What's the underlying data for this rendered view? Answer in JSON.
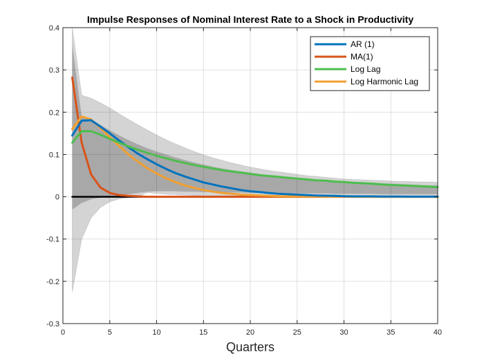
{
  "chart_data": {
    "type": "line",
    "title": "Impulse Responses of Nominal Interest Rate to a Shock in Productivity",
    "xlabel": "Quarters",
    "ylabel": "",
    "xlim": [
      0,
      40
    ],
    "ylim": [
      -0.3,
      0.4
    ],
    "xticks": [
      0,
      5,
      10,
      15,
      20,
      25,
      30,
      35,
      40
    ],
    "yticks": [
      -0.3,
      -0.2,
      -0.1,
      0,
      0.1,
      0.2,
      0.3,
      0.4
    ],
    "xtick_labels": [
      "0",
      "5",
      "10",
      "15",
      "20",
      "25",
      "30",
      "35",
      "40"
    ],
    "ytick_labels": [
      "-0.3",
      "-0.2",
      "-0.1",
      "0",
      "0.1",
      "0.2",
      "0.3",
      "0.4"
    ],
    "grid": true,
    "legend_position": "top-right",
    "x": [
      1,
      2,
      3,
      4,
      5,
      6,
      7,
      8,
      9,
      10,
      11,
      12,
      13,
      14,
      15,
      16,
      17,
      18,
      19,
      20,
      21,
      22,
      23,
      24,
      25,
      26,
      27,
      28,
      29,
      30,
      31,
      32,
      33,
      34,
      35,
      36,
      37,
      38,
      39,
      40
    ],
    "series": [
      {
        "name": "AR (1)",
        "color": "#0072BD",
        "values": [
          0.145,
          0.18,
          0.181,
          0.166,
          0.15,
          0.133,
          0.117,
          0.102,
          0.089,
          0.077,
          0.066,
          0.056,
          0.048,
          0.041,
          0.034,
          0.029,
          0.024,
          0.02,
          0.016,
          0.013,
          0.011,
          0.009,
          0.007,
          0.006,
          0.005,
          0.004,
          0.003,
          0.0025,
          0.002,
          0.0015,
          0.001,
          0.001,
          0.001,
          0.0005,
          0.0005,
          0.0005,
          0.0003,
          0.0003,
          0.0002,
          0.0002
        ]
      },
      {
        "name": "MA(1)",
        "color": "#D95319",
        "values": [
          0.282,
          0.128,
          0.053,
          0.022,
          0.009,
          0.004,
          0.002,
          0.001,
          0,
          0,
          0,
          0,
          0,
          0,
          0,
          0,
          0,
          0,
          0,
          0,
          0,
          0,
          0,
          0,
          0,
          0,
          0,
          0,
          0,
          0,
          0,
          0,
          0,
          0,
          0,
          0,
          0,
          0,
          0,
          0
        ]
      },
      {
        "name": "Log Lag",
        "color": "#4DBD4D",
        "values": [
          0.128,
          0.155,
          0.155,
          0.147,
          0.137,
          0.128,
          0.119,
          0.111,
          0.104,
          0.097,
          0.091,
          0.085,
          0.08,
          0.075,
          0.071,
          0.067,
          0.063,
          0.06,
          0.057,
          0.054,
          0.051,
          0.049,
          0.047,
          0.045,
          0.043,
          0.041,
          0.039,
          0.038,
          0.036,
          0.035,
          0.033,
          0.032,
          0.031,
          0.029,
          0.028,
          0.027,
          0.026,
          0.025,
          0.024,
          0.023
        ]
      },
      {
        "name": "Log Harmonic Lag",
        "color": "#F0A030",
        "values": [
          0.16,
          0.19,
          0.183,
          0.163,
          0.141,
          0.12,
          0.1,
          0.083,
          0.068,
          0.055,
          0.044,
          0.035,
          0.027,
          0.021,
          0.016,
          0.012,
          0.009,
          0.007,
          0.005,
          0.004,
          0.003,
          0.002,
          0.0015,
          0.001,
          0.001,
          0.0005,
          0.0005,
          0.0003,
          0.0002,
          0.0002,
          0.0001,
          0.0001,
          0,
          0,
          0,
          0,
          0,
          0,
          0,
          0
        ]
      },
      {
        "name": "",
        "color": "#000000",
        "values": [
          0,
          0,
          0,
          0,
          0,
          0,
          0,
          0,
          0,
          0,
          0,
          0,
          0,
          0,
          0,
          0,
          0,
          0,
          0,
          0,
          0,
          0,
          0,
          0,
          0,
          0,
          0,
          0,
          0,
          0,
          0,
          0,
          0,
          0,
          0,
          0,
          0,
          0,
          0,
          0
        ]
      }
    ],
    "bands": [
      {
        "color": "#d4d4d4",
        "lower": [
          -0.225,
          -0.1,
          -0.05,
          -0.025,
          -0.012,
          -0.005,
          -0.002,
          0,
          0.01,
          0.008,
          0.006,
          0.005,
          0.004,
          0.003,
          0.002,
          0.001,
          0,
          0,
          0,
          0,
          0,
          0,
          0,
          0,
          0,
          0,
          0,
          0,
          0,
          0,
          0,
          0,
          0,
          0,
          0,
          0,
          0,
          0,
          0,
          0
        ],
        "upper": [
          0.4,
          0.24,
          0.233,
          0.222,
          0.21,
          0.196,
          0.183,
          0.17,
          0.158,
          0.146,
          0.135,
          0.125,
          0.116,
          0.107,
          0.099,
          0.092,
          0.086,
          0.08,
          0.075,
          0.07,
          0.066,
          0.062,
          0.059,
          0.056,
          0.053,
          0.05,
          0.048,
          0.046,
          0.044,
          0.042,
          0.041,
          0.04,
          0.039,
          0.038,
          0.037,
          0.036,
          0.036,
          0.035,
          0.035,
          0.034
        ]
      },
      {
        "color": "#a8a8a8",
        "lower": [
          -0.03,
          -0.015,
          -0.006,
          -0.002,
          0,
          0.003,
          0.006,
          0.009,
          0.012,
          0.013,
          0.013,
          0.013,
          0.012,
          0.012,
          0.011,
          0.011,
          0.01,
          0.01,
          0.01,
          0.009,
          0.009,
          0.009,
          0.009,
          0.008,
          0.008,
          0.008,
          0.008,
          0.008,
          0.007,
          0.007,
          0.007,
          0.007,
          0.007,
          0.006,
          0.006,
          0.006,
          0.006,
          0.006,
          0.006,
          0.006
        ],
        "upper": [
          0.36,
          0.19,
          0.183,
          0.17,
          0.157,
          0.145,
          0.134,
          0.124,
          0.115,
          0.107,
          0.1,
          0.093,
          0.087,
          0.081,
          0.076,
          0.071,
          0.067,
          0.063,
          0.06,
          0.057,
          0.054,
          0.051,
          0.049,
          0.047,
          0.045,
          0.043,
          0.041,
          0.039,
          0.038,
          0.036,
          0.035,
          0.034,
          0.033,
          0.032,
          0.031,
          0.03,
          0.029,
          0.028,
          0.027,
          0.027
        ]
      }
    ]
  }
}
